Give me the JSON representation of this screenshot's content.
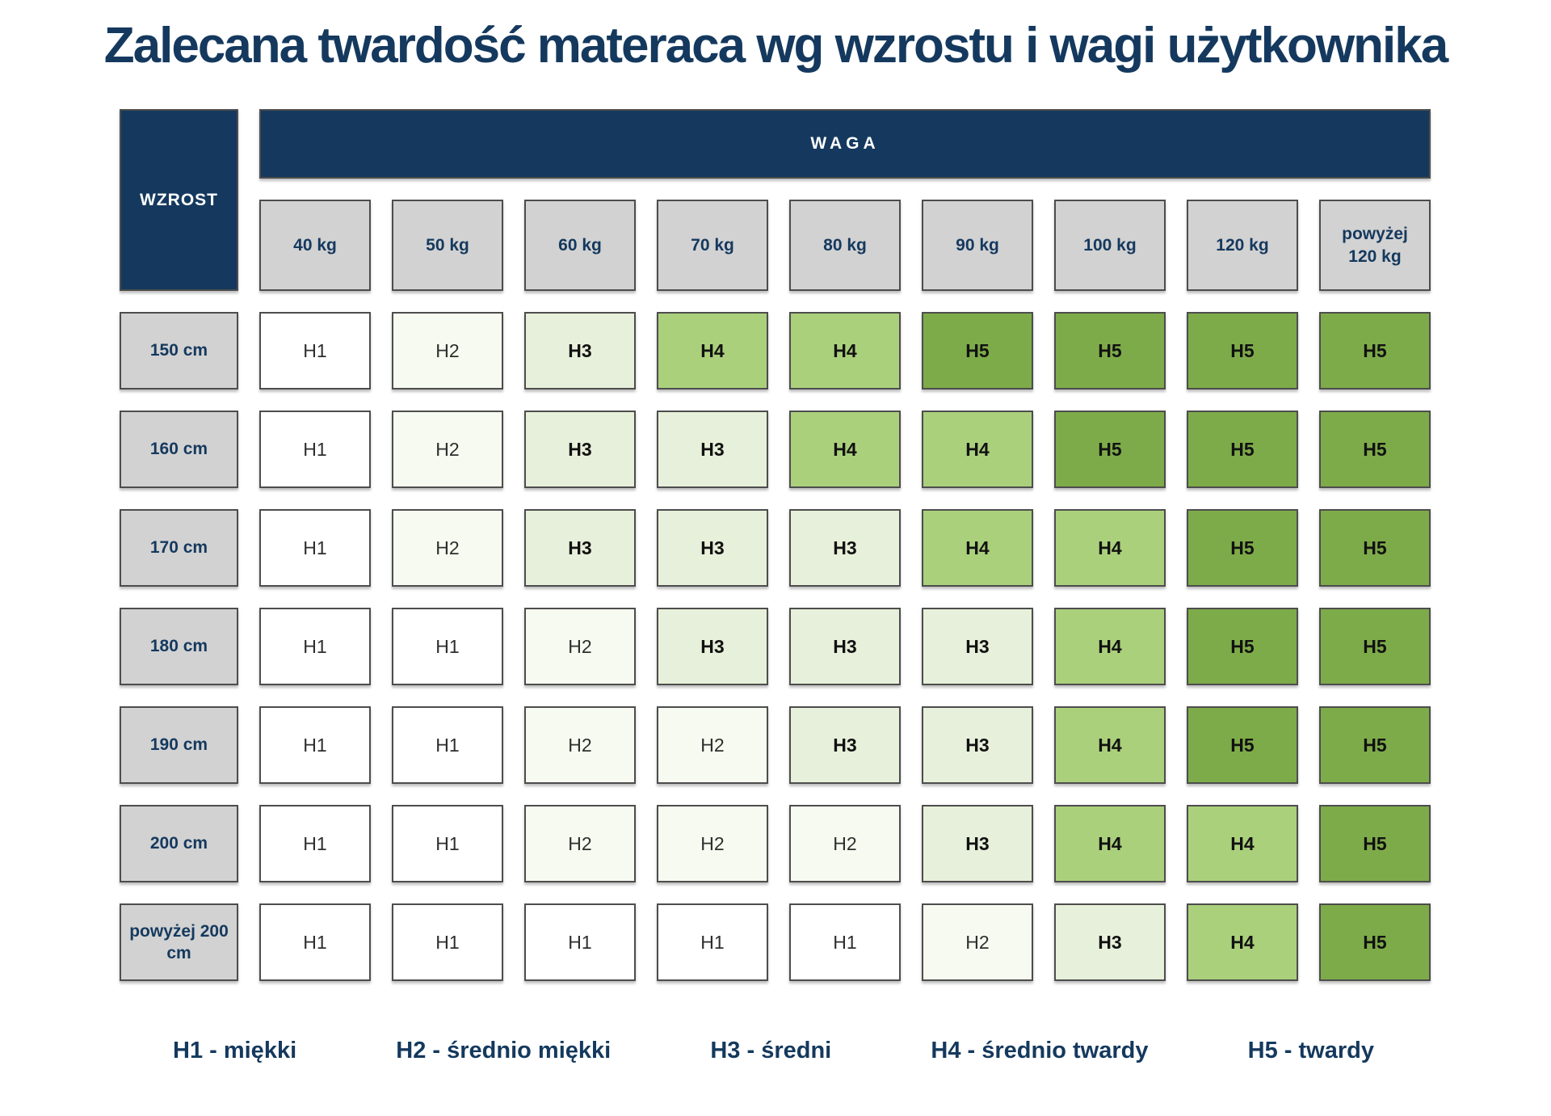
{
  "title": "Zalecana twardość materaca wg wzrostu i wagi użytkownika",
  "colors": {
    "navy": "#15395e",
    "header_gray": "#d2d2d2",
    "cell_border": "#4d4d4d",
    "H1": "#ffffff",
    "H2": "#f7faf0",
    "H3": "#e7f0da",
    "H4": "#abd07c",
    "H5": "#7dab49"
  },
  "table": {
    "corner_label": "WZROST",
    "group_label": "WAGA",
    "columns": [
      "40 kg",
      "50 kg",
      "60 kg",
      "70 kg",
      "80 kg",
      "90 kg",
      "100 kg",
      "120 kg",
      "powyżej 120 kg"
    ],
    "rows": [
      {
        "label": "150 cm",
        "values": [
          "H1",
          "H2",
          "H3",
          "H4",
          "H4",
          "H5",
          "H5",
          "H5",
          "H5"
        ]
      },
      {
        "label": "160 cm",
        "values": [
          "H1",
          "H2",
          "H3",
          "H3",
          "H4",
          "H4",
          "H5",
          "H5",
          "H5"
        ]
      },
      {
        "label": "170 cm",
        "values": [
          "H1",
          "H2",
          "H3",
          "H3",
          "H3",
          "H4",
          "H4",
          "H5",
          "H5"
        ]
      },
      {
        "label": "180 cm",
        "values": [
          "H1",
          "H1",
          "H2",
          "H3",
          "H3",
          "H3",
          "H4",
          "H5",
          "H5"
        ]
      },
      {
        "label": "190 cm",
        "values": [
          "H1",
          "H1",
          "H2",
          "H2",
          "H3",
          "H3",
          "H4",
          "H5",
          "H5"
        ]
      },
      {
        "label": "200 cm",
        "values": [
          "H1",
          "H1",
          "H2",
          "H2",
          "H2",
          "H3",
          "H4",
          "H4",
          "H5"
        ]
      },
      {
        "label": "powyżej 200 cm",
        "values": [
          "H1",
          "H1",
          "H1",
          "H1",
          "H1",
          "H2",
          "H3",
          "H4",
          "H5"
        ]
      }
    ]
  },
  "legend": [
    "H1 - miękki",
    "H2 - średnio miękki",
    "H3 - średni",
    "H4 - średnio twardy",
    "H5 - twardy"
  ],
  "chart_data": {
    "type": "heatmap",
    "title": "Zalecana twardość materaca wg wzrostu i wagi użytkownika",
    "xlabel": "WAGA",
    "ylabel": "WZROST",
    "x_categories": [
      "40 kg",
      "50 kg",
      "60 kg",
      "70 kg",
      "80 kg",
      "90 kg",
      "100 kg",
      "120 kg",
      "powyżej 120 kg"
    ],
    "y_categories": [
      "150 cm",
      "160 cm",
      "170 cm",
      "180 cm",
      "190 cm",
      "200 cm",
      "powyżej 200 cm"
    ],
    "values": [
      [
        "H1",
        "H2",
        "H3",
        "H4",
        "H4",
        "H5",
        "H5",
        "H5",
        "H5"
      ],
      [
        "H1",
        "H2",
        "H3",
        "H3",
        "H4",
        "H4",
        "H5",
        "H5",
        "H5"
      ],
      [
        "H1",
        "H2",
        "H3",
        "H3",
        "H3",
        "H4",
        "H4",
        "H5",
        "H5"
      ],
      [
        "H1",
        "H1",
        "H2",
        "H3",
        "H3",
        "H3",
        "H4",
        "H5",
        "H5"
      ],
      [
        "H1",
        "H1",
        "H2",
        "H2",
        "H3",
        "H3",
        "H4",
        "H5",
        "H5"
      ],
      [
        "H1",
        "H1",
        "H2",
        "H2",
        "H2",
        "H3",
        "H4",
        "H4",
        "H5"
      ],
      [
        "H1",
        "H1",
        "H1",
        "H1",
        "H1",
        "H2",
        "H3",
        "H4",
        "H5"
      ]
    ],
    "value_scale": [
      {
        "level": "H1",
        "meaning": "miękki",
        "color": "#ffffff"
      },
      {
        "level": "H2",
        "meaning": "średnio miękki",
        "color": "#f7faf0"
      },
      {
        "level": "H3",
        "meaning": "średni",
        "color": "#e7f0da"
      },
      {
        "level": "H4",
        "meaning": "średnio twardy",
        "color": "#abd07c"
      },
      {
        "level": "H5",
        "meaning": "twardy",
        "color": "#7dab49"
      }
    ],
    "legend_position": "bottom",
    "grid": false
  }
}
